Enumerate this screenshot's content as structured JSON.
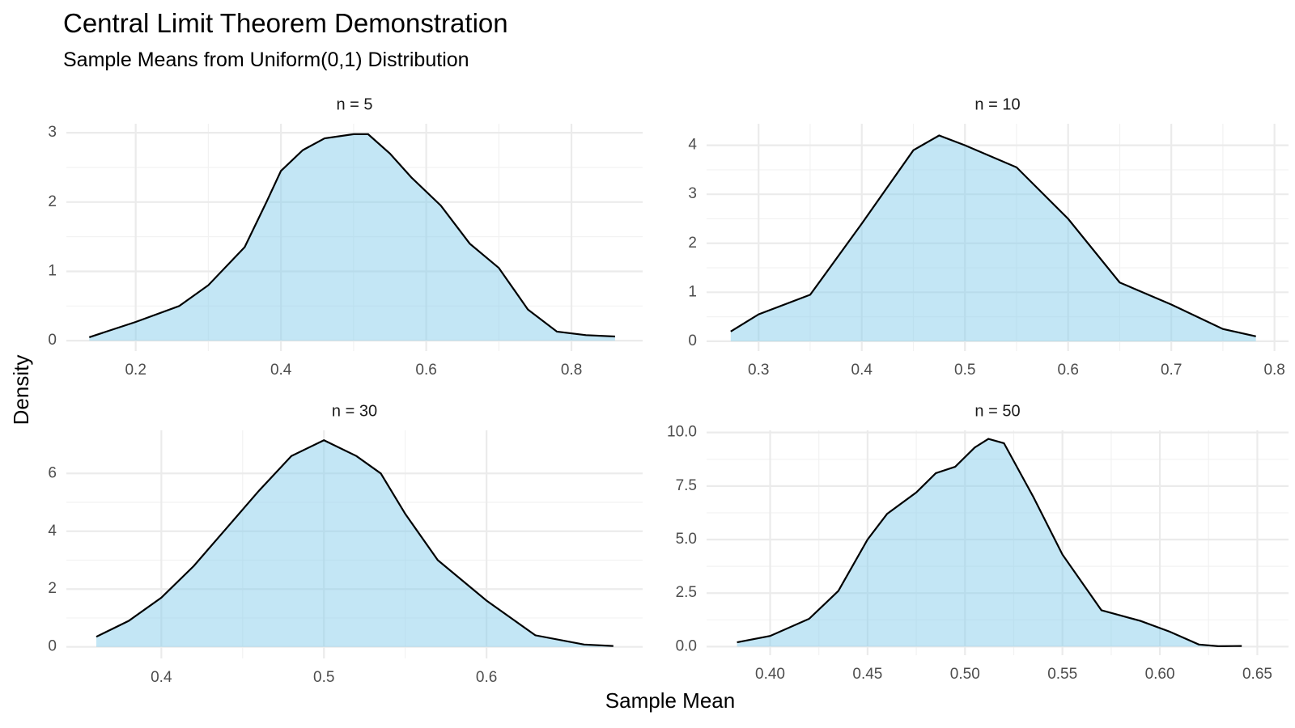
{
  "title": "Central Limit Theorem Demonstration",
  "subtitle": "Sample Means from Uniform(0,1) Distribution",
  "x_label": "Sample Mean",
  "y_label": "Density",
  "chart_data": [
    {
      "type": "area",
      "title": "n = 5",
      "fill_color": "#87ceeb",
      "fill_alpha": 0.5,
      "line_color": "#000000",
      "grid": true,
      "x": [
        0.136,
        0.2,
        0.26,
        0.3,
        0.35,
        0.38,
        0.4,
        0.43,
        0.46,
        0.5,
        0.52,
        0.55,
        0.58,
        0.62,
        0.66,
        0.7,
        0.74,
        0.78,
        0.82,
        0.86
      ],
      "values": [
        0.05,
        0.27,
        0.5,
        0.8,
        1.35,
        2.0,
        2.45,
        2.75,
        2.92,
        2.98,
        2.98,
        2.7,
        2.35,
        1.95,
        1.4,
        1.05,
        0.45,
        0.13,
        0.08,
        0.06
      ],
      "xlim": [
        0.1045,
        0.898
      ],
      "ylim": [
        -0.15,
        3.13
      ],
      "xticks": [
        0.2,
        0.4,
        0.6,
        0.8
      ],
      "yticks": [
        0,
        1,
        2,
        3
      ]
    },
    {
      "type": "area",
      "title": "n = 10",
      "fill_color": "#87ceeb",
      "fill_alpha": 0.5,
      "line_color": "#000000",
      "grid": true,
      "x": [
        0.273,
        0.3,
        0.35,
        0.4,
        0.45,
        0.475,
        0.5,
        0.55,
        0.6,
        0.65,
        0.7,
        0.75,
        0.782
      ],
      "values": [
        0.2,
        0.55,
        0.95,
        2.4,
        3.9,
        4.2,
        4.0,
        3.55,
        2.5,
        1.2,
        0.75,
        0.25,
        0.1
      ],
      "xlim": [
        0.2496,
        0.8136
      ],
      "ylim": [
        -0.2,
        4.44
      ],
      "xticks": [
        0.3,
        0.4,
        0.5,
        0.6,
        0.7,
        0.8
      ],
      "yticks": [
        0,
        1,
        2,
        3,
        4
      ]
    },
    {
      "type": "area",
      "title": "n = 30",
      "fill_color": "#87ceeb",
      "fill_alpha": 0.5,
      "line_color": "#000000",
      "grid": true,
      "x": [
        0.36,
        0.38,
        0.4,
        0.42,
        0.44,
        0.46,
        0.48,
        0.5,
        0.52,
        0.535,
        0.55,
        0.57,
        0.6,
        0.63,
        0.66,
        0.678
      ],
      "values": [
        0.35,
        0.9,
        1.7,
        2.8,
        4.1,
        5.4,
        6.6,
        7.15,
        6.6,
        6.0,
        4.6,
        3.0,
        1.6,
        0.4,
        0.08,
        0.03
      ],
      "xlim": [
        0.3416,
        0.696
      ],
      "ylim": [
        -0.4,
        7.49
      ],
      "xticks": [
        0.4,
        0.5,
        0.6
      ],
      "yticks": [
        0,
        2,
        4,
        6
      ]
    },
    {
      "type": "area",
      "title": "n = 50",
      "fill_color": "#87ceeb",
      "fill_alpha": 0.5,
      "line_color": "#000000",
      "grid": true,
      "x": [
        0.383,
        0.4,
        0.42,
        0.435,
        0.45,
        0.46,
        0.475,
        0.485,
        0.495,
        0.505,
        0.512,
        0.52,
        0.535,
        0.55,
        0.57,
        0.59,
        0.605,
        0.62,
        0.63,
        0.642
      ],
      "values": [
        0.2,
        0.5,
        1.3,
        2.6,
        5.0,
        6.2,
        7.2,
        8.1,
        8.4,
        9.3,
        9.7,
        9.5,
        7.0,
        4.3,
        1.7,
        1.2,
        0.7,
        0.1,
        0.02,
        0.03
      ],
      "xlim": [
        0.3674,
        0.666
      ],
      "ylim": [
        -0.4,
        10.1
      ],
      "xticks": [
        {
          "value": 0.4,
          "label": "0.40"
        },
        {
          "value": 0.45,
          "label": "0.45"
        },
        {
          "value": 0.5,
          "label": "0.50"
        },
        {
          "value": 0.55,
          "label": "0.55"
        },
        {
          "value": 0.6,
          "label": "0.60"
        },
        {
          "value": 0.65,
          "label": "0.65"
        }
      ],
      "yticks": [
        {
          "value": 0,
          "label": "0.0"
        },
        {
          "value": 2.5,
          "label": "2.5"
        },
        {
          "value": 5,
          "label": "5.0"
        },
        {
          "value": 7.5,
          "label": "7.5"
        },
        {
          "value": 10,
          "label": "10.0"
        }
      ]
    }
  ]
}
